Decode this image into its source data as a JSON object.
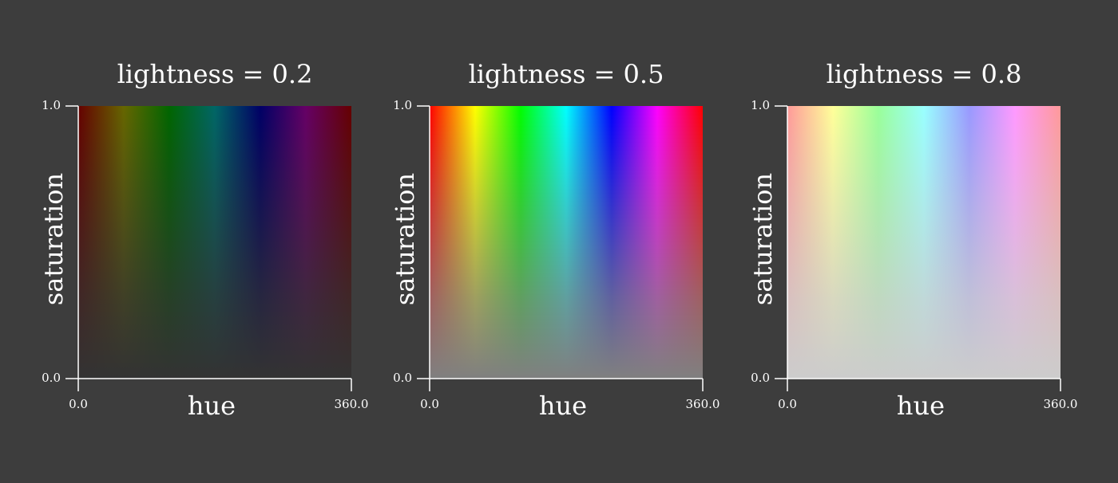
{
  "figure": {
    "background": "#3d3d3d",
    "foreground": "#ffffff"
  },
  "chart_data": [
    {
      "type": "heatmap",
      "title": "lightness = 0.2",
      "xlabel": "hue",
      "ylabel": "saturation",
      "xlim": [
        0.0,
        360.0
      ],
      "ylim": [
        0.0,
        1.0
      ],
      "xticks": [
        "0.0",
        "360.0"
      ],
      "yticks": [
        "0.0",
        "1.0"
      ],
      "color_model": "hsl",
      "lightness": 0.2,
      "grid": false
    },
    {
      "type": "heatmap",
      "title": "lightness = 0.5",
      "xlabel": "hue",
      "ylabel": "saturation",
      "xlim": [
        0.0,
        360.0
      ],
      "ylim": [
        0.0,
        1.0
      ],
      "xticks": [
        "0.0",
        "360.0"
      ],
      "yticks": [
        "0.0",
        "1.0"
      ],
      "color_model": "hsl",
      "lightness": 0.5,
      "grid": false
    },
    {
      "type": "heatmap",
      "title": "lightness = 0.8",
      "xlabel": "hue",
      "ylabel": "saturation",
      "xlim": [
        0.0,
        360.0
      ],
      "ylim": [
        0.0,
        1.0
      ],
      "xticks": [
        "0.0",
        "360.0"
      ],
      "yticks": [
        "0.0",
        "1.0"
      ],
      "color_model": "hsl",
      "lightness": 0.8,
      "grid": false
    }
  ]
}
